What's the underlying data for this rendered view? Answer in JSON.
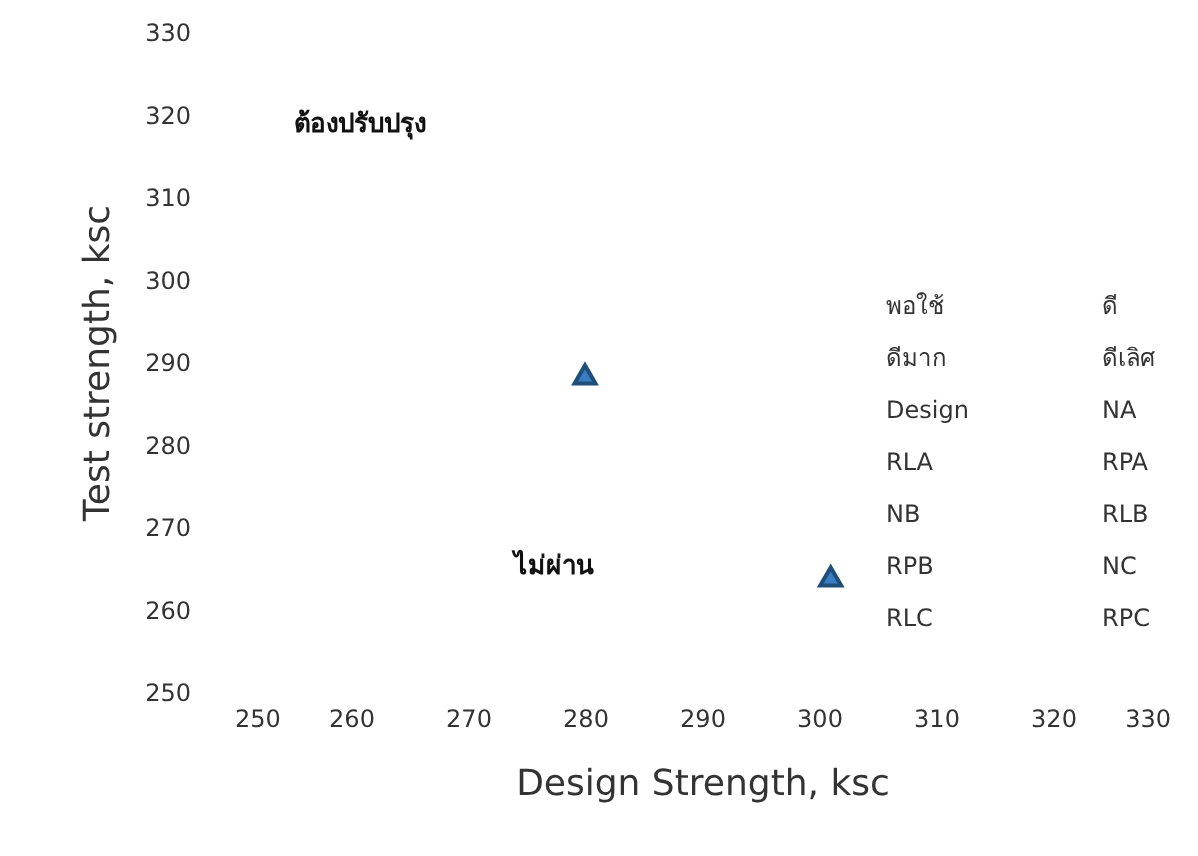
{
  "chart_data": {
    "type": "scatter",
    "xlabel": "Design Strength, ksc",
    "ylabel": "Test strength, ksc",
    "x": [
      280,
      301
    ],
    "values": [
      288.5,
      264
    ],
    "color": "#3a7cc2",
    "marker": "triangle",
    "grid": false,
    "xlim": [
      250,
      330
    ],
    "xticks": [
      250,
      260,
      270,
      280,
      290,
      300,
      310,
      320,
      330
    ],
    "ylim": [
      250,
      330
    ],
    "yticks": [
      250,
      260,
      270,
      280,
      290,
      300,
      310,
      320,
      330
    ],
    "annotations": [
      "ต้องปรับปรุง",
      "ไม่ผ่าน",
      "พอใช้",
      "ดี",
      "ดีมาก",
      "ดีเลิศ",
      "Design",
      "NA",
      "RLA",
      "RPA",
      "NB",
      "RLB",
      "RPB",
      "NC",
      "RLC",
      "RPC"
    ]
  }
}
